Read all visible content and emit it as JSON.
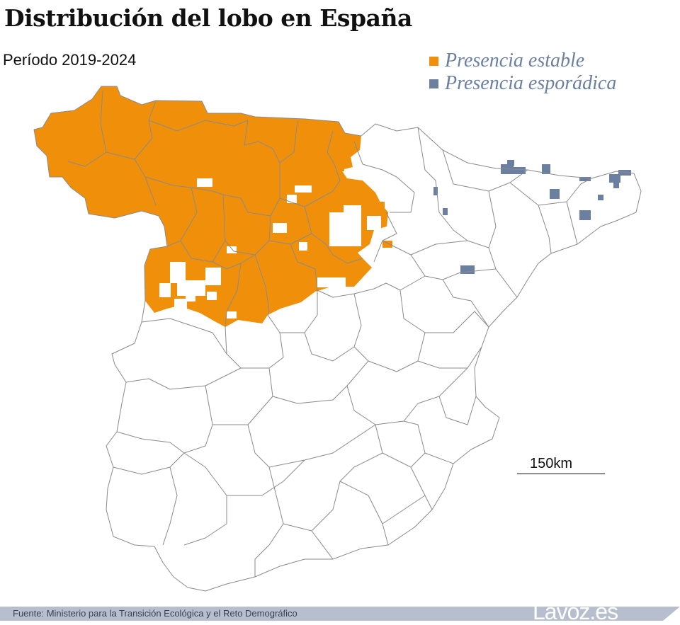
{
  "header": {
    "title": "Distribución del lobo en España",
    "subtitle": "Período 2019-2024"
  },
  "legend": [
    {
      "label": "Presencia estable",
      "color": "#f0900a"
    },
    {
      "label": "Presencia esporádica",
      "color": "#6b7fa0"
    }
  ],
  "map": {
    "scale_label": "150km",
    "colors": {
      "stable": "#f0900a",
      "sporadic": "#6b7fa0",
      "border": "#8a8a8a"
    }
  },
  "footer": {
    "source": "Fuente: Ministerio para la Transición Ecológica y el Reto Demográfico",
    "brand": "Lavoz.es"
  }
}
